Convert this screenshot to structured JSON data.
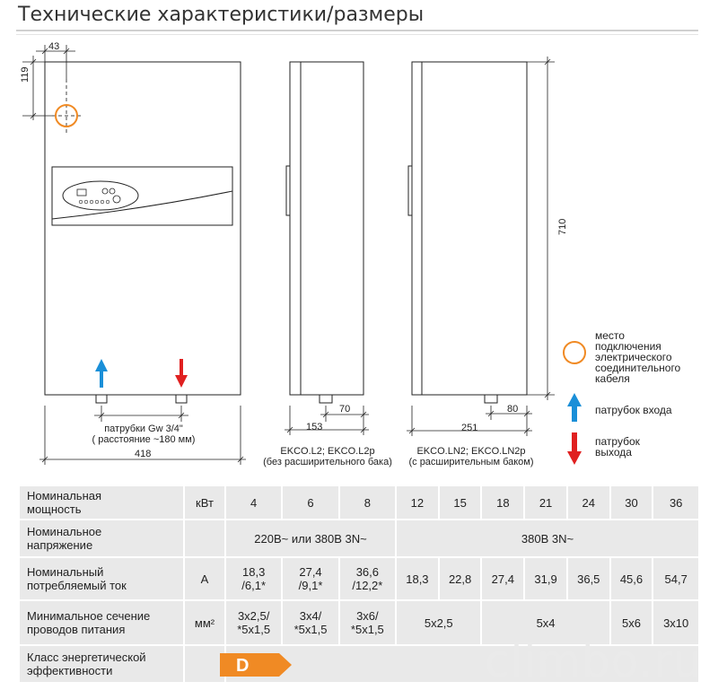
{
  "page_title": "Технические характеристики/размеры",
  "dimensions": {
    "d43": "43",
    "d119": "119",
    "d710": "710",
    "d70": "70",
    "d153": "153",
    "d80": "80",
    "d251": "251",
    "d418": "418",
    "pipe_label_1": "патрубки Gw 3/4\"",
    "pipe_label_2": "( расстояние  ~180 мм)"
  },
  "side_view_1": {
    "model": "EKCO.L2; EKCO.L2p",
    "note": "(без расширительного бака)"
  },
  "side_view_2": {
    "model": "EKCO.LN2; EKCO.LN2p",
    "note": "(с расширительным баком)"
  },
  "legend": {
    "cable": [
      "место",
      "подключения",
      "электрического",
      "соединительного",
      "кабеля"
    ],
    "inlet": "патрубок входа",
    "outlet": [
      "патрубок",
      "выхода"
    ]
  },
  "colors": {
    "accent_orange": "#f08a24",
    "inlet_blue": "#1a8fd8",
    "outlet_red": "#e02020",
    "energy_class": "#f08a24"
  },
  "table": {
    "power": {
      "label": [
        "Номинальная",
        "мощность"
      ],
      "unit": "кВт",
      "values": [
        "4",
        "6",
        "8",
        "12",
        "15",
        "18",
        "21",
        "24",
        "30",
        "36"
      ]
    },
    "voltage": {
      "label": [
        "Номинальное",
        "напряжение"
      ],
      "unit": "",
      "values": [
        "220В~ или 380В 3N~",
        "380В 3N~"
      ]
    },
    "current": {
      "label": [
        "Номинальный",
        "потребляемый ток"
      ],
      "unit": "А",
      "values": [
        [
          "18,3",
          "/6,1*"
        ],
        [
          "27,4",
          "/9,1*"
        ],
        [
          "36,6",
          "/12,2*"
        ],
        "18,3",
        "22,8",
        "27,4",
        "31,9",
        "36,5",
        "45,6",
        "54,7"
      ]
    },
    "cable_section": {
      "label": [
        "Минимальное сечение",
        "проводов питания"
      ],
      "unit": "мм²",
      "values": [
        [
          "3x2,5/",
          "*5x1,5"
        ],
        [
          "3x4/",
          "*5x1,5"
        ],
        [
          "3x6/",
          "*5x1,5"
        ],
        "5x2,5",
        "5x4",
        "5x6",
        "3x10"
      ]
    },
    "energy_class": {
      "label": [
        "Класс энергетической",
        "эффективности"
      ],
      "unit": "",
      "value": "D"
    }
  },
  "watermark": "climbo.ru"
}
